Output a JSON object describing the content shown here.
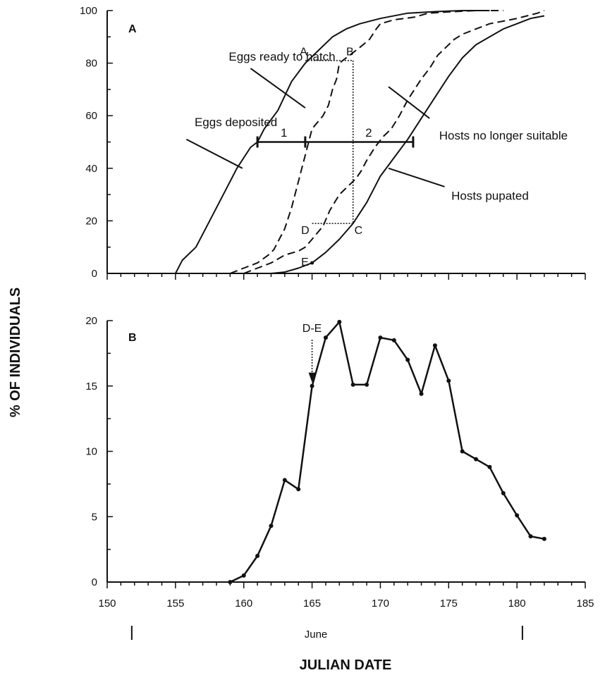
{
  "chart_data": [
    {
      "panel": "A",
      "type": "line",
      "xlim": [
        150,
        185
      ],
      "ylim": [
        0,
        100
      ],
      "yticks": [
        0,
        20,
        40,
        60,
        80,
        100
      ],
      "series": [
        {
          "name": "Eggs deposited",
          "dash": false,
          "points": [
            [
              155,
              0
            ],
            [
              155.5,
              5
            ],
            [
              156.5,
              10
            ],
            [
              157.5,
              20
            ],
            [
              158.5,
              30
            ],
            [
              159.5,
              40
            ],
            [
              160.5,
              48
            ],
            [
              161,
              50
            ],
            [
              161.5,
              55
            ],
            [
              162.5,
              62
            ],
            [
              163.5,
              73
            ],
            [
              164.5,
              80
            ],
            [
              165.5,
              85
            ],
            [
              166.5,
              90
            ],
            [
              167.5,
              93
            ],
            [
              168.5,
              95
            ],
            [
              170,
              97
            ],
            [
              172,
              99
            ],
            [
              174,
              99.6
            ],
            [
              176,
              100
            ],
            [
              178,
              100
            ]
          ]
        },
        {
          "name": "Eggs ready to hatch",
          "dash": true,
          "points": [
            [
              159,
              0
            ],
            [
              160,
              2
            ],
            [
              161,
              4
            ],
            [
              161.8,
              7
            ],
            [
              162.2,
              9
            ],
            [
              162.5,
              12
            ],
            [
              163,
              17
            ],
            [
              163.5,
              25
            ],
            [
              164,
              35
            ],
            [
              164.5,
              45
            ],
            [
              165,
              55
            ],
            [
              165.8,
              60
            ],
            [
              166.2,
              64
            ],
            [
              166.5,
              70
            ],
            [
              166.8,
              74
            ],
            [
              167,
              80
            ],
            [
              167.5,
              82
            ],
            [
              168,
              84
            ],
            [
              168.5,
              86
            ],
            [
              169.2,
              89
            ],
            [
              169.7,
              93
            ],
            [
              170,
              95
            ],
            [
              171,
              96.5
            ],
            [
              172.5,
              97.5
            ],
            [
              173.5,
              99
            ],
            [
              175,
              99.5
            ],
            [
              177,
              100
            ],
            [
              179,
              100
            ]
          ]
        },
        {
          "name": "Hosts no longer suitable",
          "dash": true,
          "points": [
            [
              160,
              0
            ],
            [
              161,
              2
            ],
            [
              162,
              4
            ],
            [
              163,
              7
            ],
            [
              164,
              8.5
            ],
            [
              164.5,
              10
            ],
            [
              165,
              13
            ],
            [
              165.8,
              18
            ],
            [
              166.3,
              24
            ],
            [
              167,
              30
            ],
            [
              167.6,
              33
            ],
            [
              168.2,
              36
            ],
            [
              168.6,
              39
            ],
            [
              169,
              43
            ],
            [
              169.6,
              48
            ],
            [
              170.2,
              52
            ],
            [
              170.8,
              55
            ],
            [
              171.4,
              60
            ],
            [
              172,
              66
            ],
            [
              172.5,
              70
            ],
            [
              173,
              74
            ],
            [
              173.6,
              78
            ],
            [
              174.2,
              83
            ],
            [
              174.8,
              86
            ],
            [
              175.4,
              89
            ],
            [
              176,
              91
            ],
            [
              177,
              93
            ],
            [
              178,
              95
            ],
            [
              180,
              97
            ],
            [
              181.5,
              99
            ],
            [
              182,
              100
            ]
          ]
        },
        {
          "name": "Hosts pupated",
          "dash": false,
          "points": [
            [
              162,
              0
            ],
            [
              163,
              0.5
            ],
            [
              164,
              2
            ],
            [
              165,
              4
            ],
            [
              166,
              8
            ],
            [
              167,
              13
            ],
            [
              168,
              19
            ],
            [
              169,
              27
            ],
            [
              170,
              37
            ],
            [
              171,
              44
            ],
            [
              172,
              51
            ],
            [
              173,
              59
            ],
            [
              174,
              67
            ],
            [
              175,
              75
            ],
            [
              176,
              82
            ],
            [
              177,
              87
            ],
            [
              178,
              90
            ],
            [
              179,
              93
            ],
            [
              180,
              95
            ],
            [
              181,
              97
            ],
            [
              182,
              98
            ]
          ]
        }
      ],
      "texts": [
        {
          "label": "Eggs deposited",
          "anchor": [
            156.4,
            56
          ]
        },
        {
          "label": "Eggs ready to hatch",
          "anchor": [
            158.9,
            81
          ]
        },
        {
          "label": "Hosts no longer suitable",
          "anchor": [
            174.3,
            51
          ]
        },
        {
          "label": "Hosts pupated",
          "anchor": [
            175.2,
            28
          ]
        },
        {
          "label": "1",
          "anchor": [
            162.7,
            52
          ]
        },
        {
          "label": "2",
          "anchor": [
            168.9,
            52
          ]
        }
      ],
      "leaders": [
        [
          [
            159.9,
            40
          ],
          [
            155.8,
            51
          ]
        ],
        [
          [
            164.5,
            63
          ],
          [
            160.5,
            78
          ]
        ],
        [
          [
            170.6,
            71
          ],
          [
            173.6,
            59
          ]
        ],
        [
          [
            170.6,
            40
          ],
          [
            174.7,
            33
          ]
        ]
      ],
      "markers": {
        "bracket": {
          "y": 50,
          "ticks": [
            161,
            164.5,
            172.4
          ]
        },
        "AB": {
          "x": [
            164.5,
            168
          ],
          "y": 81
        },
        "vertical": {
          "x": 168,
          "y": [
            19,
            81
          ]
        },
        "DC": {
          "x": [
            165,
            168
          ],
          "y": 19
        },
        "E_point": [
          165,
          4
        ]
      },
      "point_labels": [
        {
          "label": "A",
          "at": [
            164.1,
            83
          ]
        },
        {
          "label": "B",
          "at": [
            167.5,
            83
          ]
        },
        {
          "label": "C",
          "at": [
            168.1,
            15
          ]
        },
        {
          "label": "D",
          "at": [
            164.2,
            15
          ]
        },
        {
          "label": "E",
          "at": [
            164.2,
            3
          ]
        }
      ]
    },
    {
      "panel": "B",
      "type": "line",
      "xlim": [
        150,
        185
      ],
      "ylim": [
        0,
        20
      ],
      "xticks": [
        150,
        155,
        160,
        165,
        170,
        175,
        180,
        185
      ],
      "yticks": [
        0,
        5,
        10,
        15,
        20
      ],
      "x": [
        159,
        160,
        161,
        162,
        163,
        164,
        165,
        166,
        167,
        168,
        169,
        170,
        171,
        172,
        173,
        174,
        175,
        176,
        177,
        178,
        179,
        180,
        181,
        182
      ],
      "values": [
        0,
        0.5,
        2,
        4.3,
        7.8,
        7.1,
        15,
        18.7,
        19.9,
        15.1,
        15.1,
        18.7,
        18.5,
        17,
        14.4,
        18.1,
        15.4,
        10,
        9.4,
        8.8,
        6.8,
        5.1,
        3.5,
        3.3
      ],
      "annotation": {
        "label": "D-E",
        "arrow_from": 15,
        "at": 165
      }
    }
  ],
  "figure": {
    "panel_a_label": "A",
    "panel_b_label": "B",
    "y_axis_title": "% OF INDIVIDUALS",
    "x_axis_title": "JULIAN DATE",
    "month_label": "June",
    "month_bracket": [
      151.8,
      180.4
    ]
  },
  "colors": {
    "ink": "#111111",
    "background": "#ffffff"
  }
}
